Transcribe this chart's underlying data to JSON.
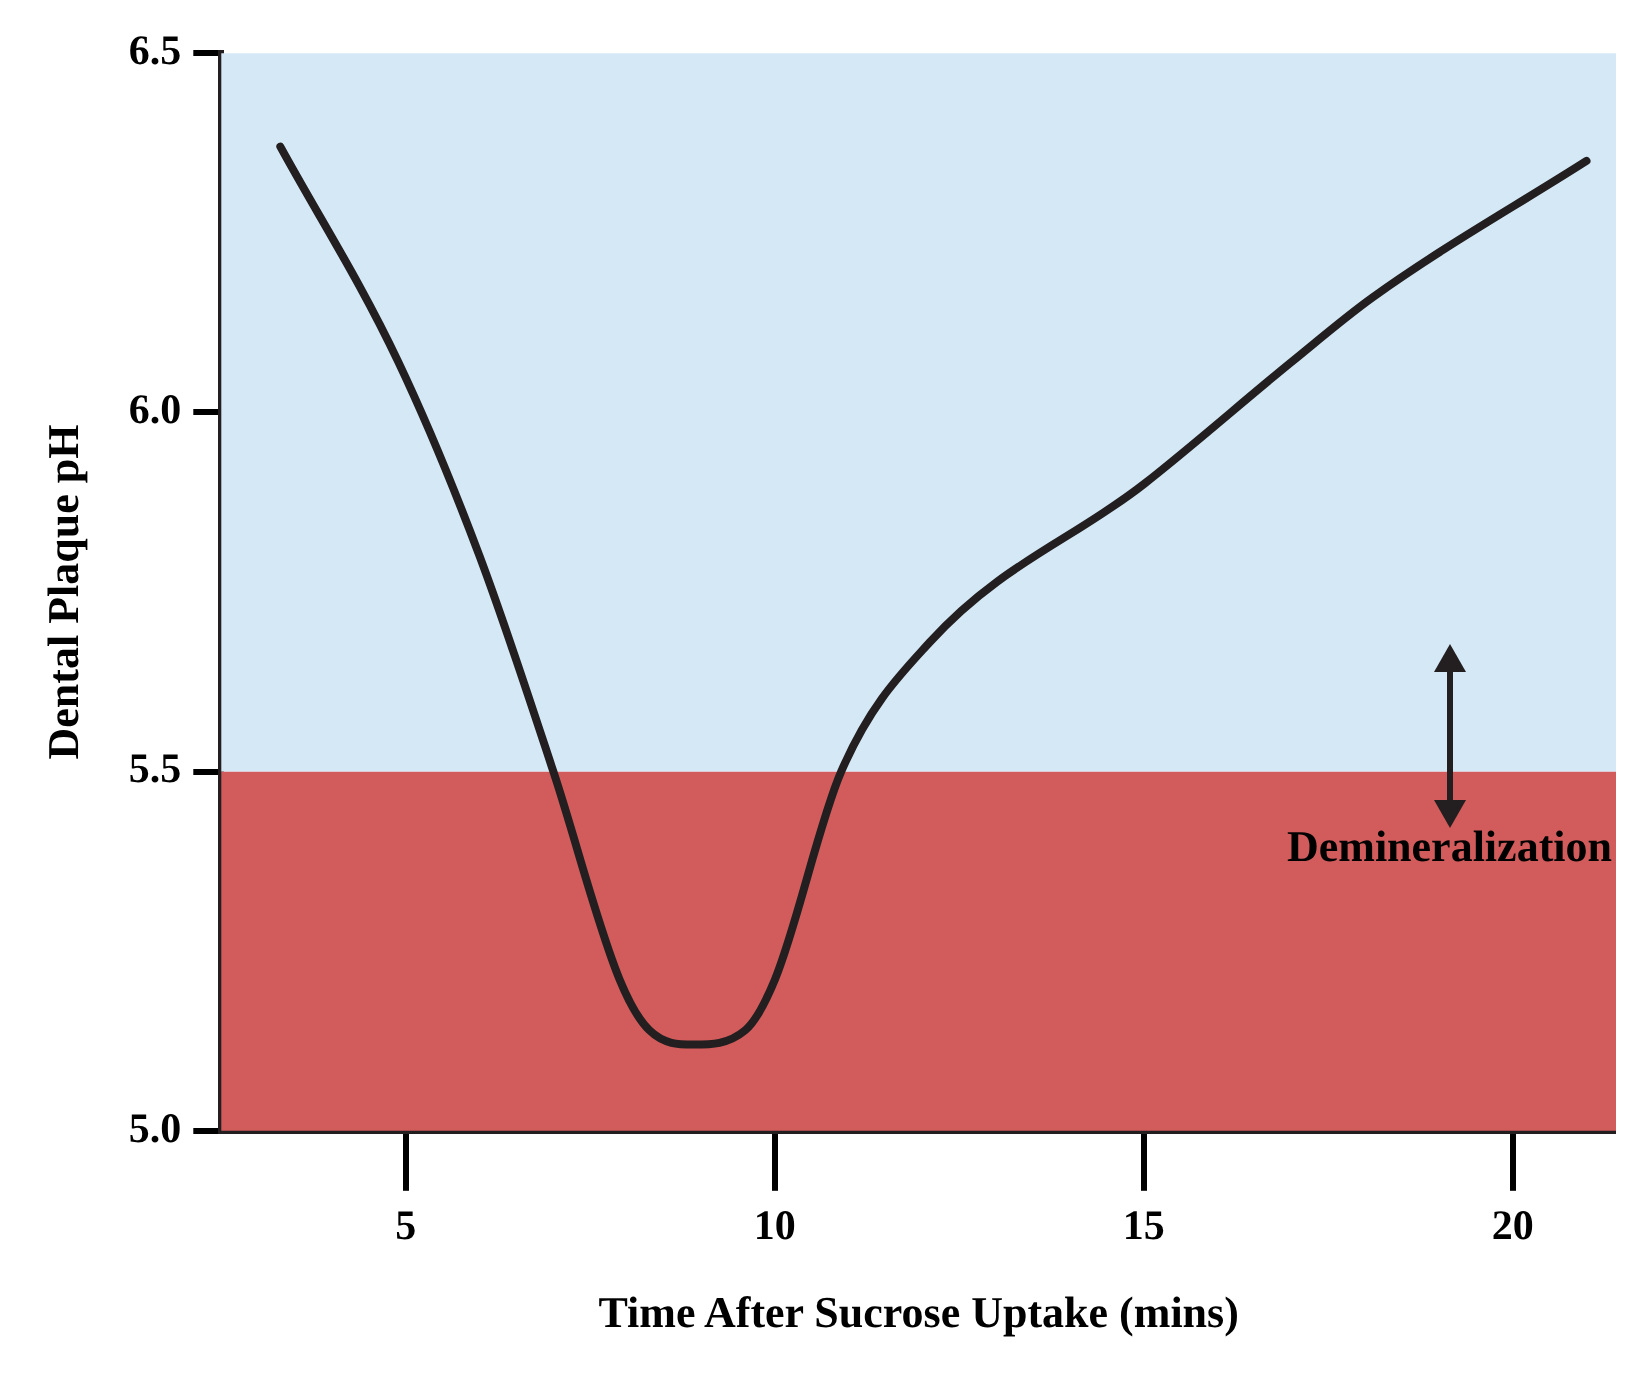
{
  "chart_data": {
    "type": "line",
    "xlabel": "Time After Sucrose Uptake (mins)",
    "ylabel": "Dental Plaque pH",
    "x": [
      3.3,
      4.9,
      6.0,
      7.0,
      7.9,
      8.3,
      8.9,
      9.6,
      10.0,
      10.9,
      12.1,
      15.0,
      17.0,
      18.1,
      21.0
    ],
    "values": [
      6.37,
      6.07,
      5.8,
      5.5,
      5.21,
      5.14,
      5.12,
      5.14,
      5.21,
      5.5,
      5.68,
      5.9,
      6.07,
      6.16,
      6.35
    ],
    "color": "#231f20",
    "marker": "none",
    "line_style": "solid",
    "xlim": [
      2.5,
      21.4
    ],
    "ylim": [
      5.0,
      6.5
    ],
    "xticks": [
      5,
      10,
      15,
      20
    ],
    "yticks": [
      {
        "value": 5.0,
        "label": "5.0"
      },
      5.5,
      {
        "value": 6.0,
        "label": "6.0"
      },
      6.5
    ],
    "bands": [
      {
        "axis": "y",
        "from": 5.0,
        "to": 5.5,
        "label": "Demineralization",
        "color": "#d15c5b"
      },
      {
        "axis": "y",
        "from": 5.5,
        "to": 6.5,
        "color": "#d4e8f6"
      }
    ]
  }
}
